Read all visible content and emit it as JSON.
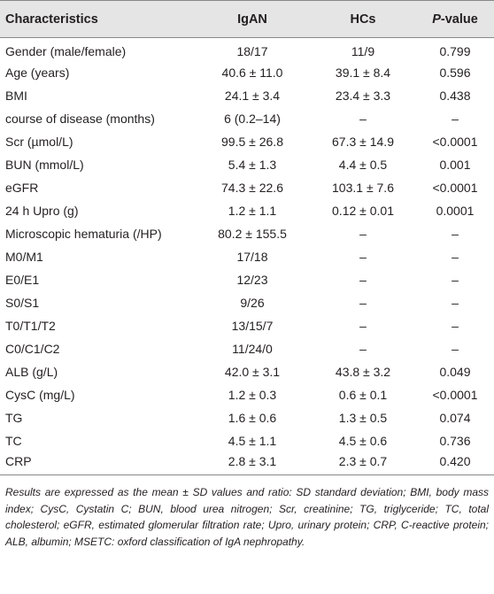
{
  "table": {
    "header": [
      "Characteristics",
      "IgAN",
      "HCs",
      "P-value"
    ],
    "rows": [
      [
        "Gender (male/female)",
        "18/17",
        "11/9",
        "0.799"
      ],
      [
        "Age (years)",
        "40.6 ± 11.0",
        "39.1 ± 8.4",
        "0.596"
      ],
      [
        "BMI",
        "24.1 ± 3.4",
        "23.4 ± 3.3",
        "0.438"
      ],
      [
        "course of disease (months)",
        "6 (0.2–14)",
        "–",
        "–"
      ],
      [
        "Scr (µmol/L)",
        "99.5 ± 26.8",
        "67.3 ± 14.9",
        "<0.0001"
      ],
      [
        "BUN (mmol/L)",
        "5.4 ± 1.3",
        "4.4 ± 0.5",
        "0.001"
      ],
      [
        "eGFR",
        "74.3 ± 22.6",
        "103.1 ± 7.6",
        "<0.0001"
      ],
      [
        "24 h Upro (g)",
        "1.2 ± 1.1",
        "0.12 ± 0.01",
        "0.0001"
      ],
      [
        "Microscopic hematuria (/HP)",
        "80.2 ± 155.5",
        "–",
        "–"
      ],
      [
        "M0/M1",
        "17/18",
        "–",
        "–"
      ],
      [
        "E0/E1",
        "12/23",
        "–",
        "–"
      ],
      [
        "S0/S1",
        "9/26",
        "–",
        "–"
      ],
      [
        "T0/T1/T2",
        "13/15/7",
        "–",
        "–"
      ],
      [
        "C0/C1/C2",
        "11/24/0",
        "–",
        "–"
      ],
      [
        "ALB (g/L)",
        "42.0 ± 3.1",
        "43.8 ± 3.2",
        "0.049"
      ],
      [
        "CysC (mg/L)",
        "1.2 ± 0.3",
        "0.6 ± 0.1",
        "<0.0001"
      ],
      [
        "TG",
        "1.6 ± 0.6",
        "1.3 ± 0.5",
        "0.074"
      ],
      [
        "TC",
        "4.5 ± 1.1",
        "4.5 ± 0.6",
        "0.736"
      ],
      [
        "CRP",
        "2.8 ± 3.1",
        "2.3 ± 0.7",
        "0.420"
      ]
    ],
    "footnote": "Results are expressed as the mean ± SD values and ratio: SD standard deviation; BMI, body mass index; CysC, Cystatin C; BUN, blood urea nitrogen; Scr, creatinine; TG, triglyceride; TC, total cholesterol; eGFR, estimated glomerular filtration rate; Upro, urinary protein; CRP, C-reactive protein; ALB, albumin; MSETC: oxford classification of IgA nephropathy."
  }
}
